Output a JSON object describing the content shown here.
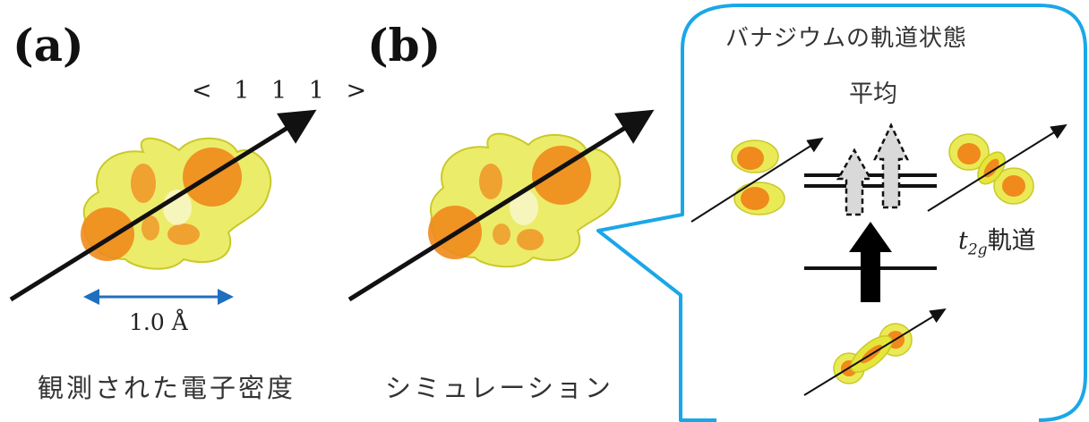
{
  "panels": {
    "a": {
      "label": "(a)",
      "axis_label": "< 1 1 1 >",
      "scale_label": "1.0 Å",
      "caption": "観測された電子密度"
    },
    "b": {
      "label": "(b)",
      "caption": "シミュレーション"
    }
  },
  "bubble": {
    "title": "バナジウムの軌道状態",
    "average_label": "平均",
    "orbital_label_main": "t",
    "orbital_label_sub": "2g",
    "orbital_label_suffix": "軌道"
  },
  "colors": {
    "density_outer": "#e6e63a",
    "density_inner": "#f08a1c",
    "bubble_border": "#1aa7e8",
    "scale_arrow": "#1f6fc0",
    "arrow_solid": "#000000",
    "arrow_dashed_fill": "#d9d9d9"
  }
}
